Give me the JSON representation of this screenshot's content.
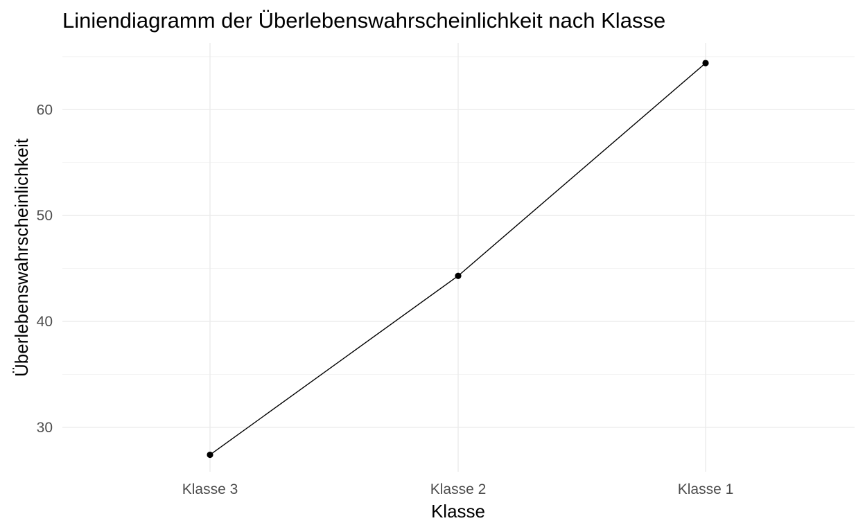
{
  "chart_data": {
    "type": "line",
    "title": "Liniendiagramm der Überlebenswahrscheinlichkeit nach Klasse",
    "xlabel": "Klasse",
    "ylabel": "Überlebenswahrscheinlichkeit",
    "categories": [
      "Klasse 3",
      "Klasse 2",
      "Klasse 1"
    ],
    "values": [
      27.4,
      44.3,
      64.4
    ],
    "ylim": [
      25.8,
      66.3
    ],
    "yticks": [
      30,
      40,
      50,
      60
    ],
    "y_minor_ticks": [
      35,
      45,
      55,
      65
    ],
    "grid": true,
    "legend": "none",
    "colors": {
      "line": "#000000",
      "point": "#000000",
      "grid": "#ebebeb",
      "tick_text": "#4d4d4d"
    }
  }
}
